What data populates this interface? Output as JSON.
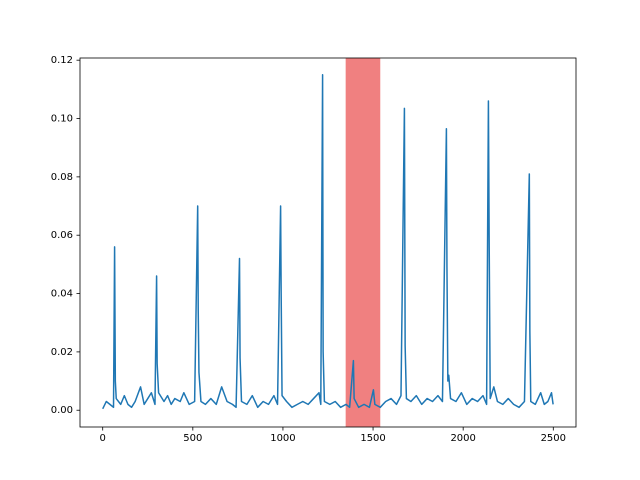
{
  "chart_data": {
    "type": "line",
    "x": [
      0,
      20,
      40,
      60,
      66,
      70,
      75,
      100,
      120,
      140,
      160,
      180,
      210,
      230,
      250,
      270,
      290,
      299,
      302,
      310,
      340,
      360,
      380,
      400,
      430,
      450,
      480,
      510,
      527,
      530,
      534,
      545,
      570,
      600,
      630,
      660,
      690,
      720,
      740,
      759,
      762,
      770,
      800,
      830,
      860,
      890,
      920,
      950,
      970,
      987,
      990,
      995,
      1020,
      1050,
      1080,
      1110,
      1140,
      1170,
      1200,
      1210,
      1220,
      1223,
      1230,
      1260,
      1290,
      1320,
      1350,
      1370,
      1391,
      1395,
      1420,
      1450,
      1480,
      1502,
      1510,
      1540,
      1570,
      1600,
      1630,
      1655,
      1674,
      1678,
      1685,
      1710,
      1740,
      1770,
      1800,
      1830,
      1860,
      1885,
      1907,
      1910,
      1915,
      1920,
      1930,
      1960,
      1990,
      2020,
      2050,
      2080,
      2110,
      2130,
      2140,
      2144,
      2150,
      2170,
      2190,
      2220,
      2250,
      2280,
      2310,
      2340,
      2367,
      2370,
      2375,
      2400,
      2430,
      2450,
      2470,
      2490,
      2499
    ],
    "series": [
      {
        "color": "#1f77b4",
        "values": [
          0.0005,
          0.003,
          0.002,
          0.001,
          0.056,
          0.01,
          0.004,
          0.002,
          0.005,
          0.002,
          0.001,
          0.003,
          0.008,
          0.002,
          0.004,
          0.006,
          0.002,
          0.046,
          0.016,
          0.006,
          0.003,
          0.005,
          0.002,
          0.004,
          0.003,
          0.006,
          0.002,
          0.003,
          0.07,
          0.034,
          0.013,
          0.003,
          0.002,
          0.004,
          0.002,
          0.008,
          0.003,
          0.002,
          0.001,
          0.052,
          0.018,
          0.003,
          0.002,
          0.005,
          0.001,
          0.003,
          0.002,
          0.005,
          0.002,
          0.07,
          0.041,
          0.005,
          0.003,
          0.001,
          0.002,
          0.003,
          0.002,
          0.004,
          0.006,
          0.002,
          0.115,
          0.02,
          0.003,
          0.002,
          0.003,
          0.001,
          0.002,
          0.001,
          0.017,
          0.004,
          0.001,
          0.002,
          0.001,
          0.007,
          0.002,
          0.001,
          0.003,
          0.004,
          0.002,
          0.005,
          0.1035,
          0.022,
          0.004,
          0.003,
          0.005,
          0.002,
          0.004,
          0.003,
          0.005,
          0.003,
          0.0965,
          0.049,
          0.01,
          0.012,
          0.004,
          0.003,
          0.006,
          0.002,
          0.004,
          0.003,
          0.005,
          0.002,
          0.106,
          0.06,
          0.004,
          0.008,
          0.003,
          0.002,
          0.004,
          0.002,
          0.001,
          0.003,
          0.081,
          0.027,
          0.003,
          0.002,
          0.006,
          0.002,
          0.003,
          0.006,
          0.002
        ]
      }
    ],
    "spans": [
      {
        "xmin": 1348,
        "xmax": 1540,
        "color": "#f08080"
      }
    ],
    "xlim": [
      -126,
      2626
    ],
    "ylim": [
      -0.00575,
      0.12075
    ],
    "xticks": [
      0,
      500,
      1000,
      1500,
      2000,
      2500
    ],
    "yticks": [
      {
        "value": 0,
        "label": "0.00"
      },
      {
        "value": 0.02,
        "label": "0.02"
      },
      {
        "value": 0.04,
        "label": "0.04"
      },
      {
        "value": 0.06,
        "label": "0.06"
      },
      {
        "value": 0.08,
        "label": "0.08"
      },
      {
        "value": 0.1,
        "label": "0.10"
      },
      {
        "value": 0.12,
        "label": "0.12"
      }
    ]
  }
}
